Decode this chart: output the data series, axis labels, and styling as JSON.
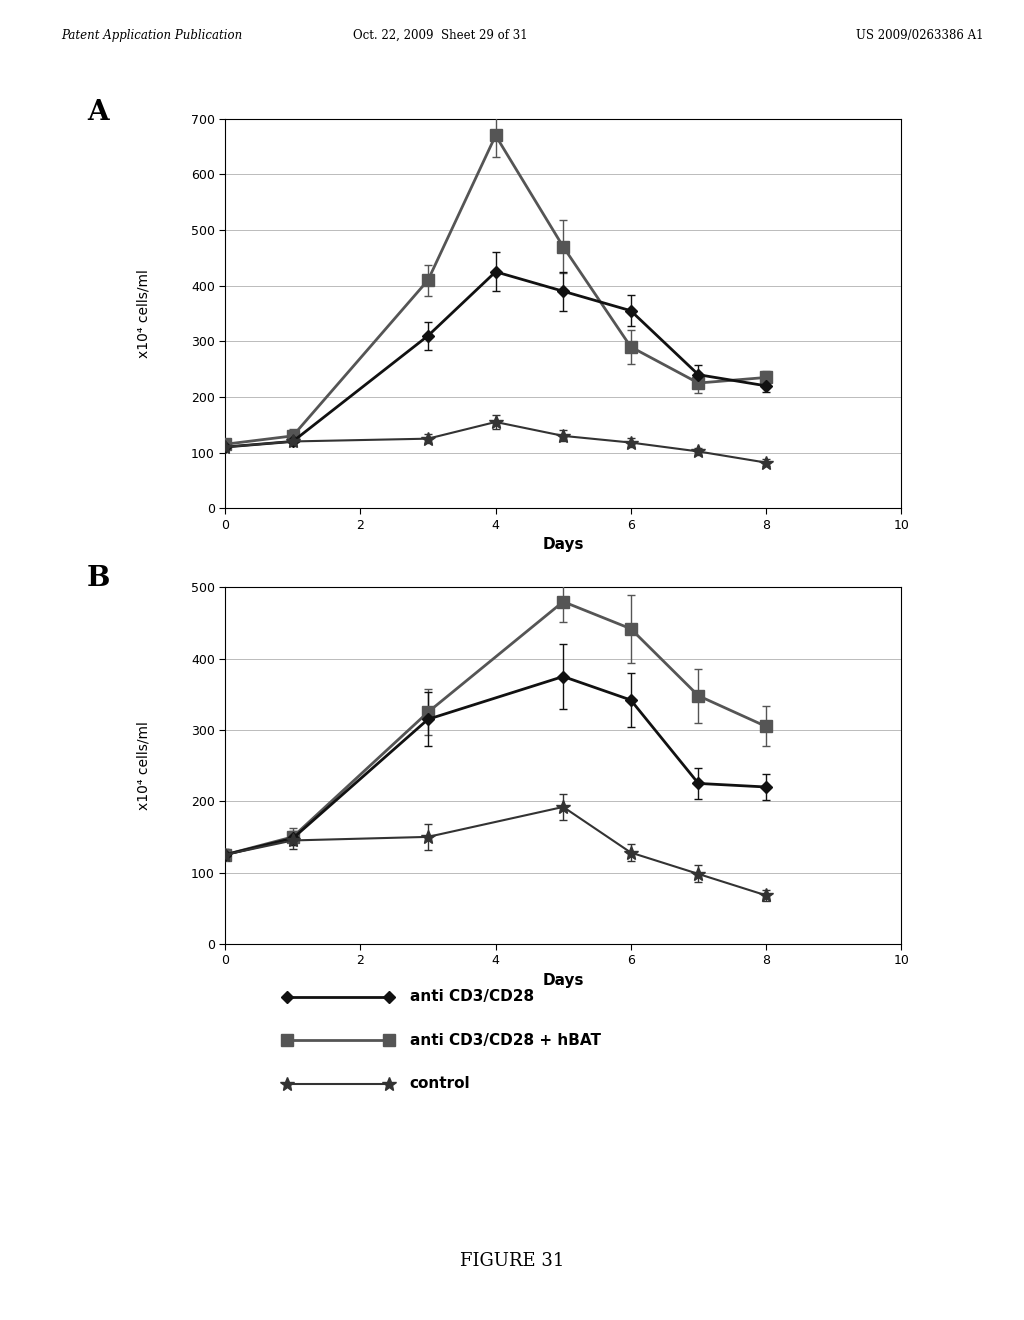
{
  "panel_A": {
    "label": "A",
    "xlabel": "Days",
    "ylabel": "x10⁴ cells/ml",
    "xlim": [
      0,
      10
    ],
    "ylim": [
      0,
      700
    ],
    "yticks": [
      0,
      100,
      200,
      300,
      400,
      500,
      600,
      700
    ],
    "xticks": [
      0,
      2,
      4,
      6,
      8,
      10
    ],
    "series": {
      "anti_cd3cd28": {
        "x": [
          0,
          1,
          3,
          4,
          5,
          6,
          7,
          8
        ],
        "y": [
          110,
          120,
          310,
          425,
          390,
          355,
          240,
          220
        ],
        "yerr": [
          8,
          8,
          25,
          35,
          35,
          28,
          18,
          12
        ],
        "marker": "D",
        "color": "#111111",
        "linewidth": 2.0,
        "markersize": 6,
        "label": "anti CD3/CD28"
      },
      "anti_cd3cd28_hbat": {
        "x": [
          0,
          1,
          3,
          4,
          5,
          6,
          7,
          8
        ],
        "y": [
          115,
          130,
          410,
          670,
          470,
          290,
          225,
          235
        ],
        "yerr": [
          8,
          12,
          28,
          38,
          48,
          30,
          18,
          12
        ],
        "marker": "s",
        "color": "#555555",
        "linewidth": 2.0,
        "markersize": 9,
        "label": "anti CD3/CD28 + hBAT"
      },
      "control": {
        "x": [
          0,
          1,
          3,
          4,
          5,
          6,
          7,
          8
        ],
        "y": [
          110,
          120,
          125,
          155,
          130,
          118,
          102,
          82
        ],
        "yerr": [
          6,
          6,
          8,
          12,
          10,
          8,
          6,
          6
        ],
        "marker": "*",
        "color": "#333333",
        "linewidth": 1.5,
        "markersize": 10,
        "label": "control"
      }
    }
  },
  "panel_B": {
    "label": "B",
    "xlabel": "Days",
    "ylabel": "x10⁴ cells/ml",
    "xlim": [
      0,
      10
    ],
    "ylim": [
      0,
      500
    ],
    "yticks": [
      0,
      100,
      200,
      300,
      400,
      500
    ],
    "xticks": [
      0,
      2,
      4,
      6,
      8,
      10
    ],
    "series": {
      "anti_cd3cd28": {
        "x": [
          0,
          1,
          3,
          5,
          6,
          7,
          8
        ],
        "y": [
          125,
          148,
          315,
          375,
          342,
          225,
          220
        ],
        "yerr": [
          8,
          10,
          38,
          45,
          38,
          22,
          18
        ],
        "marker": "D",
        "color": "#111111",
        "linewidth": 2.0,
        "markersize": 6,
        "label": "anti CD3/CD28"
      },
      "anti_cd3cd28_hbat": {
        "x": [
          0,
          1,
          3,
          5,
          6,
          7,
          8
        ],
        "y": [
          125,
          150,
          325,
          480,
          442,
          348,
          305
        ],
        "yerr": [
          8,
          12,
          32,
          28,
          48,
          38,
          28
        ],
        "marker": "s",
        "color": "#555555",
        "linewidth": 2.0,
        "markersize": 9,
        "label": "anti CD3/CD28 + hBAT"
      },
      "control": {
        "x": [
          0,
          1,
          3,
          5,
          6,
          7,
          8
        ],
        "y": [
          125,
          145,
          150,
          192,
          128,
          98,
          68
        ],
        "yerr": [
          6,
          12,
          18,
          18,
          12,
          12,
          8
        ],
        "marker": "*",
        "color": "#333333",
        "linewidth": 1.5,
        "markersize": 10,
        "label": "control"
      }
    }
  },
  "header_left": "Patent Application Publication",
  "header_mid": "Oct. 22, 2009  Sheet 29 of 31",
  "header_right": "US 2009/0263386 A1",
  "figure_label": "FIGURE 31",
  "legend_entries": [
    "anti CD3/CD28",
    "anti CD3/CD28 + hBAT",
    "control"
  ],
  "background_color": "#ffffff",
  "grid_color": "#bbbbbb"
}
